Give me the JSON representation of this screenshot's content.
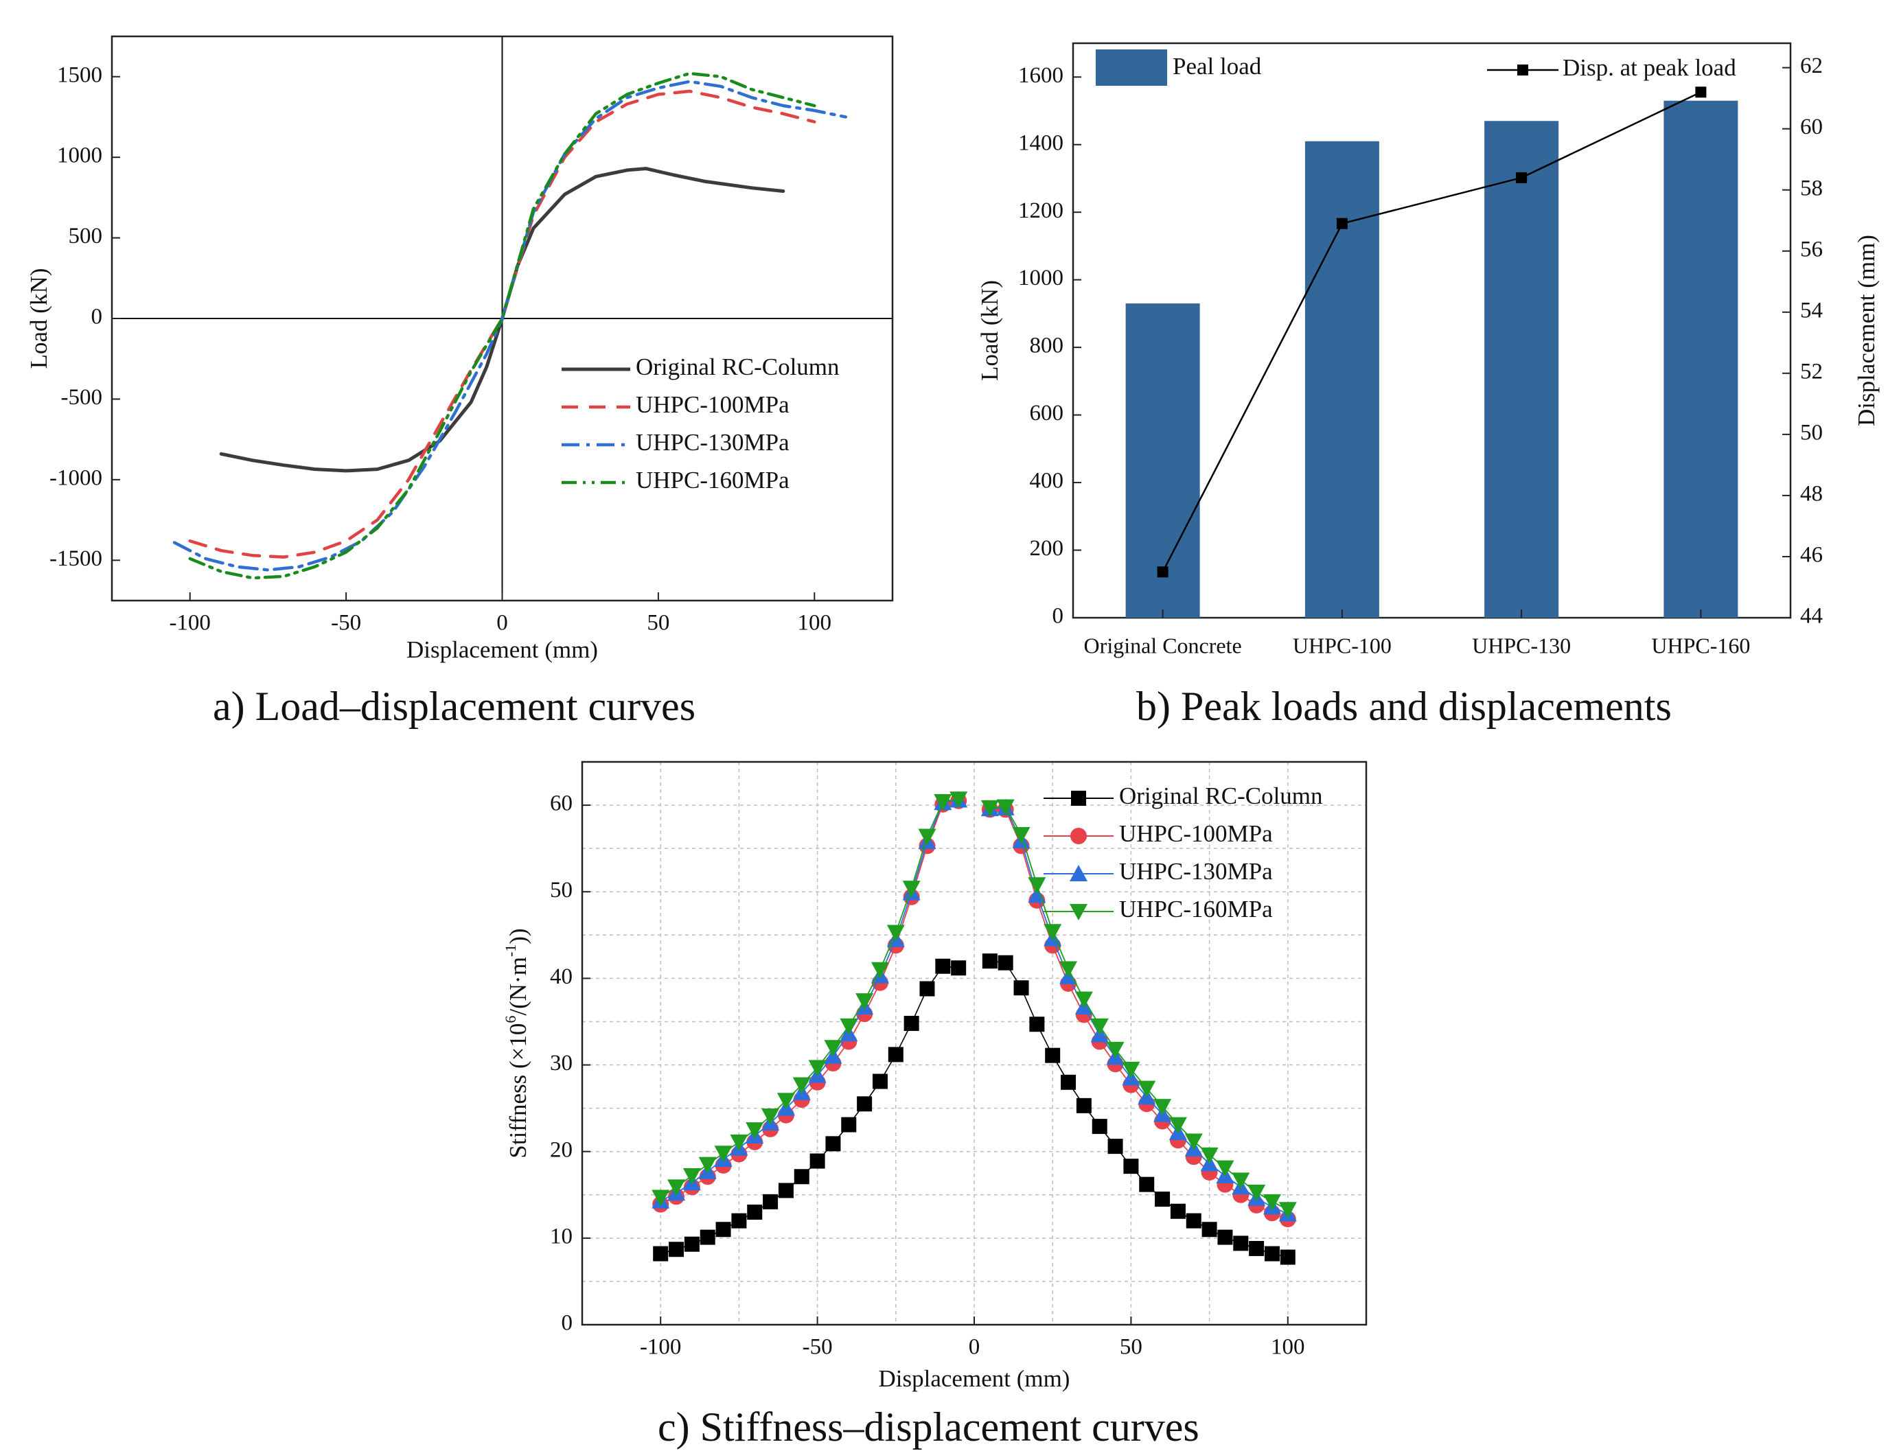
{
  "captions": {
    "a": "a) Load–displacement curves",
    "b": "b) Peak loads and displacements",
    "c": "c) Stiffness–displacement curves"
  },
  "colors": {
    "original": "#3c3c3c",
    "uhpc100": "#e04343",
    "uhpc130": "#2f6fcf",
    "uhpc160": "#1a8a1a",
    "bar": "#336699",
    "stiff_original": "#000000",
    "stiff_100": "#e8414a",
    "stiff_130": "#2c6fdc",
    "stiff_160": "#1f9e1f"
  },
  "chart_data": [
    {
      "id": "a",
      "type": "line",
      "xlabel": "Displacement (mm)",
      "ylabel": "Load (kN)",
      "xlim": [
        -125,
        125
      ],
      "ylim": [
        -1750,
        1750
      ],
      "xticks": [
        -100,
        -50,
        0,
        50,
        100
      ],
      "yticks": [
        -1500,
        -1000,
        -500,
        0,
        500,
        1000,
        1500
      ],
      "grid": false,
      "legend": "lower-right",
      "series": [
        {
          "name": "Original RC-Column",
          "style": "solid",
          "x": [
            -90,
            -80,
            -70,
            -60,
            -50,
            -40,
            -30,
            -20,
            -10,
            -5,
            0,
            5,
            10,
            20,
            30,
            40,
            46,
            55,
            65,
            80,
            90
          ],
          "y": [
            -840,
            -880,
            -910,
            -935,
            -945,
            -935,
            -880,
            -760,
            -520,
            -300,
            0,
            330,
            560,
            770,
            880,
            920,
            930,
            890,
            850,
            810,
            790
          ]
        },
        {
          "name": "UHPC-100MPa",
          "style": "dash",
          "x": [
            -100,
            -90,
            -80,
            -70,
            -60,
            -50,
            -40,
            -30,
            -20,
            -10,
            0,
            10,
            20,
            30,
            40,
            50,
            60,
            70,
            80,
            90,
            100
          ],
          "y": [
            -1380,
            -1440,
            -1470,
            -1480,
            -1450,
            -1380,
            -1250,
            -1000,
            -660,
            -320,
            0,
            640,
            1000,
            1220,
            1330,
            1390,
            1410,
            1370,
            1310,
            1270,
            1220
          ]
        },
        {
          "name": "UHPC-130MPa",
          "style": "dashdot",
          "x": [
            -105,
            -95,
            -85,
            -75,
            -65,
            -55,
            -45,
            -35,
            -25,
            -15,
            -5,
            0,
            10,
            20,
            30,
            40,
            50,
            60,
            70,
            80,
            90,
            100,
            110
          ],
          "y": [
            -1390,
            -1490,
            -1540,
            -1560,
            -1540,
            -1480,
            -1380,
            -1200,
            -920,
            -580,
            -220,
            0,
            660,
            1020,
            1240,
            1370,
            1430,
            1470,
            1440,
            1370,
            1320,
            1290,
            1250
          ]
        },
        {
          "name": "UHPC-160MPa",
          "style": "dashdotdot",
          "x": [
            -100,
            -90,
            -80,
            -70,
            -60,
            -50,
            -40,
            -30,
            -20,
            -10,
            0,
            10,
            20,
            30,
            40,
            50,
            60,
            70,
            80,
            90,
            100
          ],
          "y": [
            -1490,
            -1570,
            -1610,
            -1600,
            -1540,
            -1450,
            -1300,
            -1060,
            -700,
            -330,
            0,
            680,
            1020,
            1270,
            1390,
            1460,
            1520,
            1500,
            1420,
            1370,
            1320
          ]
        }
      ]
    },
    {
      "id": "b",
      "type": "bar",
      "categories": [
        "Original Concrete",
        "UHPC-100",
        "UHPC-130",
        "UHPC-160"
      ],
      "ylabel": "Load (kN)",
      "y2label": "Displacement (mm)",
      "ylim": [
        0,
        1700
      ],
      "y2lim": [
        44,
        62.8
      ],
      "yticks": [
        0,
        200,
        400,
        600,
        800,
        1000,
        1200,
        1400,
        1600
      ],
      "y2ticks": [
        44,
        46,
        48,
        50,
        52,
        54,
        56,
        58,
        60,
        62
      ],
      "grid": false,
      "series": [
        {
          "name": "Peal load",
          "axis": "left",
          "kind": "bar",
          "values": [
            930,
            1410,
            1470,
            1530
          ]
        },
        {
          "name": "Disp. at peak load",
          "axis": "right",
          "kind": "line-marker",
          "values": [
            45.5,
            56.9,
            58.4,
            61.2
          ]
        }
      ]
    },
    {
      "id": "c",
      "type": "scatter",
      "xlabel": "Displacement (mm)",
      "ylabel_main": "Stiffness (×10",
      "ylabel_sup1": "6",
      "ylabel_mid": "/(N·m",
      "ylabel_sup2": "-1",
      "ylabel_end": "))",
      "xlim": [
        -125,
        125
      ],
      "ylim": [
        0,
        65
      ],
      "xticks": [
        -100,
        -50,
        0,
        50,
        100
      ],
      "yticks": [
        0,
        10,
        20,
        30,
        40,
        50,
        60
      ],
      "grid": true,
      "legend": "top-right",
      "x": [
        -100,
        -95,
        -90,
        -85,
        -80,
        -75,
        -70,
        -65,
        -60,
        -55,
        -50,
        -45,
        -40,
        -35,
        -30,
        -25,
        -20,
        -15,
        -10,
        -5,
        5,
        10,
        15,
        20,
        25,
        30,
        35,
        40,
        45,
        50,
        55,
        60,
        65,
        70,
        75,
        80,
        85,
        90,
        95,
        100
      ],
      "series": [
        {
          "name": "Original RC-Column",
          "marker": "square",
          "values": [
            8.2,
            8.7,
            9.3,
            10.1,
            11.0,
            12.0,
            13.0,
            14.2,
            15.5,
            17.1,
            18.9,
            20.9,
            23.1,
            25.5,
            28.1,
            31.2,
            34.8,
            38.8,
            41.4,
            41.2,
            42.0,
            41.8,
            38.9,
            34.7,
            31.1,
            28.0,
            25.3,
            22.9,
            20.6,
            18.3,
            16.2,
            14.5,
            13.1,
            12.0,
            11.0,
            10.1,
            9.4,
            8.8,
            8.2,
            7.8
          ]
        },
        {
          "name": "UHPC-100MPa",
          "marker": "circle",
          "values": [
            13.9,
            14.8,
            15.9,
            17.1,
            18.4,
            19.7,
            21.1,
            22.6,
            24.2,
            26.0,
            28.0,
            30.2,
            32.7,
            35.9,
            39.5,
            43.8,
            49.4,
            55.3,
            60.1,
            60.5,
            59.5,
            59.5,
            55.3,
            49.0,
            43.8,
            39.4,
            35.8,
            32.7,
            30.1,
            27.7,
            25.5,
            23.5,
            21.3,
            19.4,
            17.6,
            16.2,
            15.0,
            13.8,
            12.9,
            12.2
          ]
        },
        {
          "name": "UHPC-130MPa",
          "marker": "triangle-up",
          "values": [
            14.3,
            15.2,
            16.4,
            17.7,
            19.1,
            20.4,
            21.8,
            23.3,
            25.0,
            26.8,
            28.8,
            31.0,
            33.6,
            36.7,
            40.3,
            44.5,
            49.9,
            55.8,
            60.3,
            60.6,
            59.6,
            59.7,
            55.9,
            49.6,
            44.6,
            40.2,
            36.7,
            33.5,
            30.9,
            28.5,
            26.3,
            24.3,
            22.2,
            20.3,
            18.6,
            17.2,
            15.9,
            14.6,
            13.6,
            12.8
          ]
        },
        {
          "name": "UHPC-160MPa",
          "marker": "triangle-down",
          "values": [
            14.7,
            15.9,
            17.2,
            18.5,
            19.8,
            21.1,
            22.5,
            24.1,
            25.9,
            27.7,
            29.7,
            32.0,
            34.5,
            37.4,
            41.0,
            45.3,
            50.4,
            56.4,
            60.4,
            60.7,
            59.7,
            59.8,
            56.6,
            50.8,
            45.4,
            41.1,
            37.6,
            34.5,
            31.8,
            29.5,
            27.3,
            25.2,
            23.1,
            21.2,
            19.6,
            18.1,
            16.7,
            15.3,
            14.2,
            13.3
          ]
        }
      ]
    }
  ]
}
